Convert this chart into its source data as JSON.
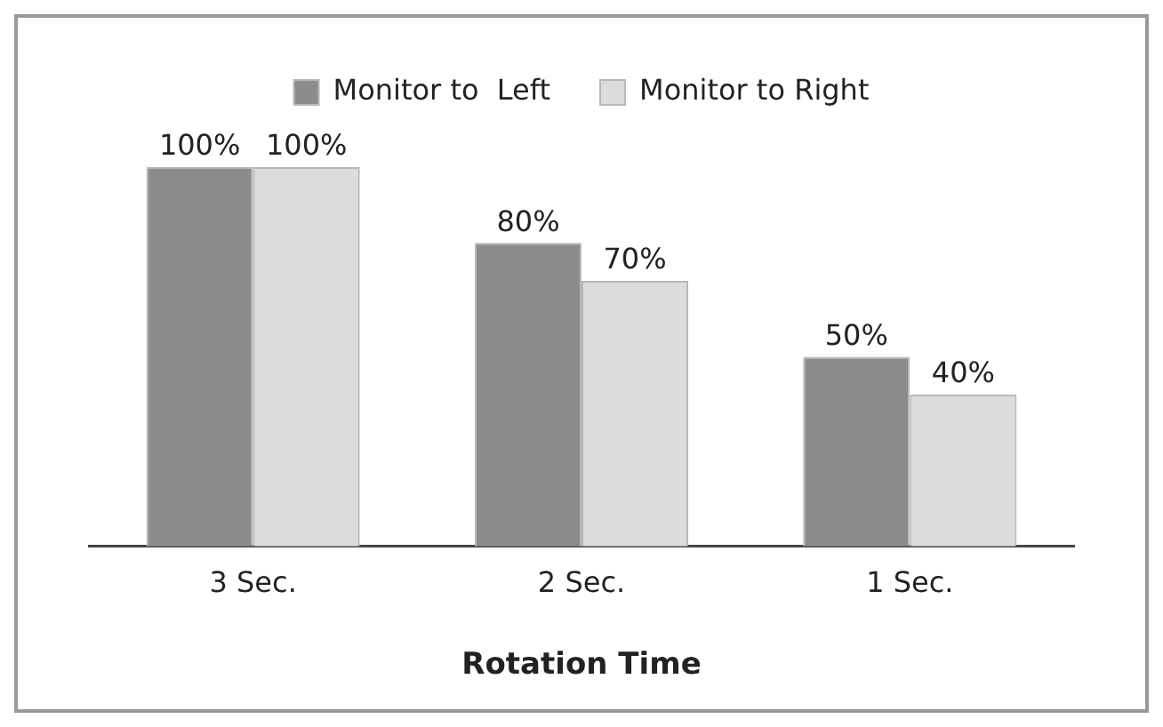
{
  "chart_data": {
    "type": "bar",
    "xlabel": "Rotation Time",
    "categories": [
      "3 Sec.",
      "2 Sec.",
      "1 Sec."
    ],
    "series": [
      {
        "name": "Monitor to  Left",
        "color": "#8c8c8c",
        "values": [
          100,
          80,
          50
        ],
        "value_labels": [
          "100%",
          "80%",
          "50%"
        ]
      },
      {
        "name": "Monitor to Right",
        "color": "#dcdcdc",
        "values": [
          100,
          70,
          40
        ],
        "value_labels": [
          "100%",
          "70%",
          "40%"
        ]
      }
    ],
    "legend": "top",
    "grid": false,
    "tick_labels": "x"
  }
}
